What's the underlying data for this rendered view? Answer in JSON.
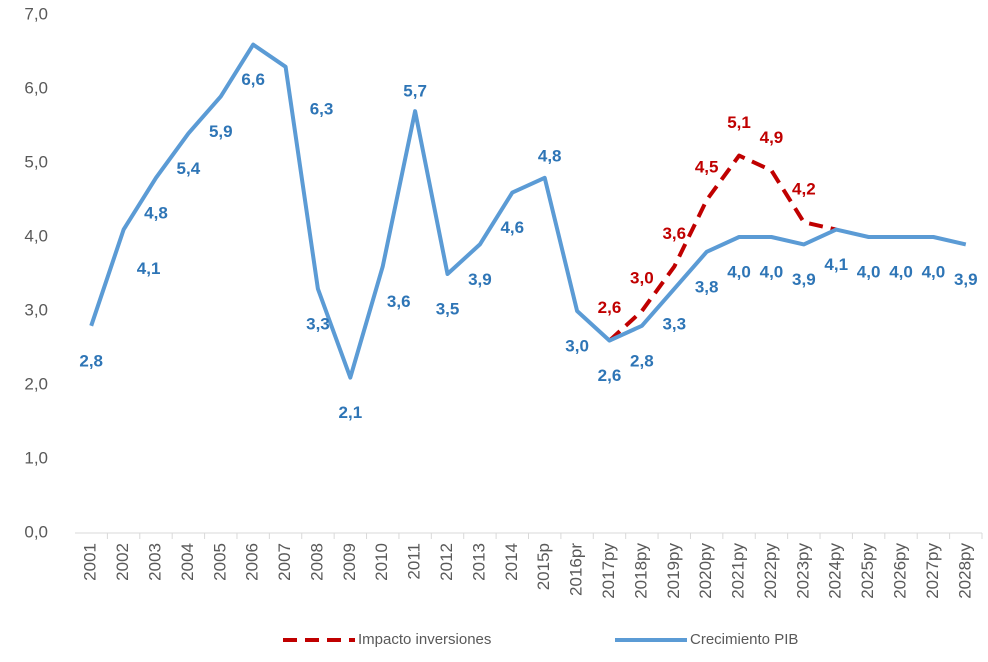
{
  "chart_data": {
    "type": "line",
    "categories": [
      "2001",
      "2002",
      "2003",
      "2004",
      "2005",
      "2006",
      "2007",
      "2008",
      "2009",
      "2010",
      "2011",
      "2012",
      "2013",
      "2014",
      "2015p",
      "2016pr",
      "2017py",
      "2018py",
      "2019py",
      "2020py",
      "2021py",
      "2022py",
      "2023py",
      "2024py",
      "2025py",
      "2026py",
      "2027py",
      "2028py"
    ],
    "series": [
      {
        "name": "Impacto inversiones",
        "color": "#c00000",
        "dashed": true,
        "values": [
          null,
          null,
          null,
          null,
          null,
          null,
          null,
          null,
          null,
          null,
          null,
          null,
          null,
          null,
          null,
          null,
          2.6,
          3.0,
          3.6,
          4.5,
          5.1,
          4.9,
          4.2,
          4.1,
          null,
          null,
          null,
          null
        ],
        "value_labels": [
          null,
          null,
          null,
          null,
          null,
          null,
          null,
          null,
          null,
          null,
          null,
          null,
          null,
          null,
          null,
          null,
          "2,6",
          "3,0",
          "3,6",
          "4,5",
          "5,1",
          "4,9",
          "4,2",
          null,
          null,
          null,
          null,
          null
        ]
      },
      {
        "name": "Crecimiento PIB",
        "color": "#5b9bd5",
        "label_color": "#2e75b6",
        "values": [
          2.8,
          4.1,
          4.8,
          5.4,
          5.9,
          6.6,
          6.3,
          3.3,
          2.1,
          3.6,
          5.7,
          3.5,
          3.9,
          4.6,
          4.8,
          3.0,
          2.6,
          2.8,
          3.3,
          3.8,
          4.0,
          4.0,
          3.9,
          4.1,
          4.0,
          4.0,
          4.0,
          3.9
        ],
        "value_labels": [
          "2,8",
          "4,1",
          "4,8",
          "5,4",
          "5,9",
          "6,6",
          "6,3",
          "3,3",
          "2,1",
          "3,6",
          "5,7",
          "3,5",
          "3,9",
          "4,6",
          "4,8",
          "3,0",
          "2,6",
          "2,8",
          "3,3",
          "3,8",
          "4,0",
          "4,0",
          "3,9",
          "4,1",
          "4,0",
          "4,0",
          "4,0",
          "3,9"
        ]
      }
    ],
    "ylim": [
      0,
      7
    ],
    "yticks": [
      {
        "value": 0,
        "label": "0,0"
      },
      {
        "value": 1,
        "label": "1,0"
      },
      {
        "value": 2,
        "label": "2,0"
      },
      {
        "value": 3,
        "label": "3,0"
      },
      {
        "value": 4,
        "label": "4,0"
      },
      {
        "value": 5,
        "label": "5,0"
      },
      {
        "value": 6,
        "label": "6,0"
      },
      {
        "value": 7,
        "label": "7,0"
      }
    ],
    "grid": false,
    "legend": "bottom"
  }
}
